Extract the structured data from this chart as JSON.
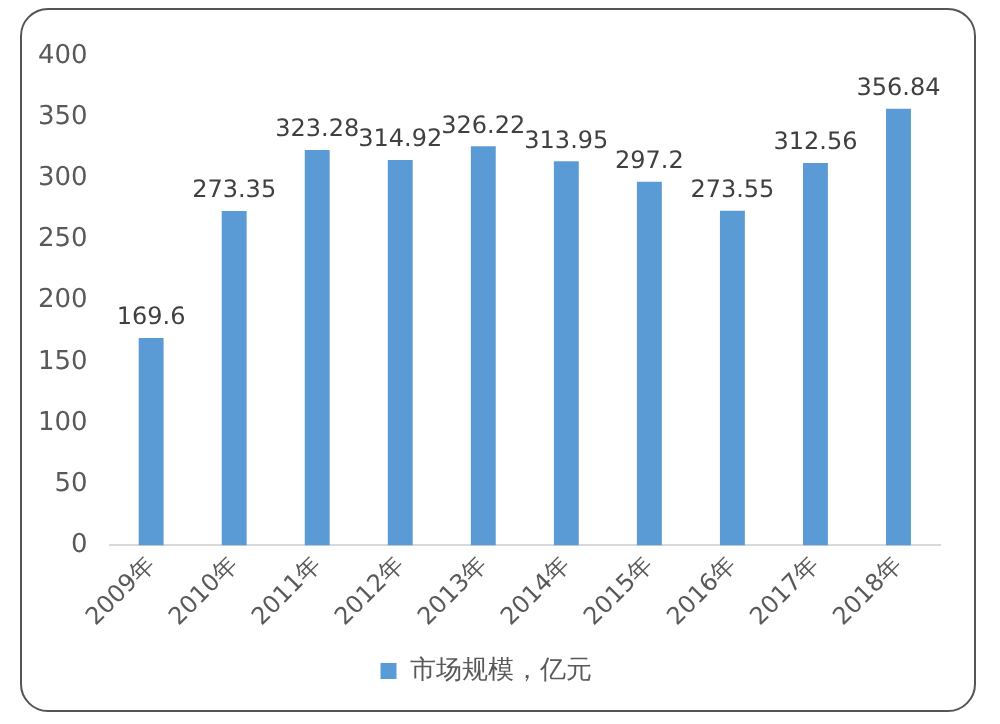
{
  "chart_data": {
    "type": "bar",
    "categories": [
      "2009年",
      "2010年",
      "2011年",
      "2012年",
      "2013年",
      "2014年",
      "2015年",
      "2016年",
      "2017年",
      "2018年"
    ],
    "series": [
      {
        "name": "市场规模，亿元",
        "color": "#5b9bd5",
        "values": [
          169.6,
          273.35,
          323.28,
          314.92,
          326.22,
          313.95,
          297.2,
          273.55,
          312.56,
          356.84
        ]
      }
    ],
    "ylim": [
      0,
      400
    ],
    "yticks": [
      0,
      50,
      100,
      150,
      200,
      250,
      300,
      350,
      400
    ],
    "grid": false,
    "legend": "bottom",
    "data_labels": true
  }
}
